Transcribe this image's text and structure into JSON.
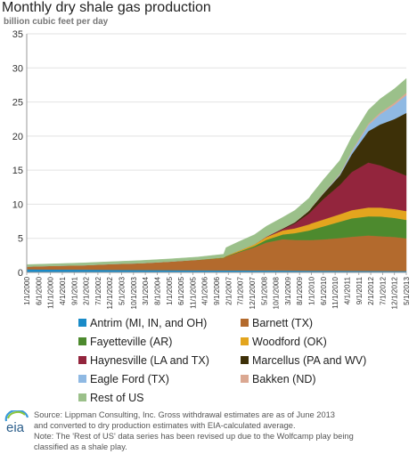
{
  "title": "Monthly dry shale gas production",
  "subtitle": "billion cubic feet per day",
  "logo_text": "eia",
  "source_lines": [
    "Source: Lippman Consulting, Inc. Gross withdrawal estimates are as of June 2013",
    "and converted to dry production estimates with EIA-calculated average.",
    "Note: The 'Rest of US' data series has been revised up due to the Wolfcamp play being",
    "classified as a shale play."
  ],
  "chart_data": {
    "type": "area",
    "stacked": true,
    "ylim": [
      0,
      35
    ],
    "yticks": [
      0,
      5,
      10,
      15,
      20,
      25,
      30,
      35
    ],
    "grid": true,
    "legend_position": "bottom",
    "x_tick_labels": [
      "1/1/2000",
      "6/1/2000",
      "11/1/2000",
      "4/1/2001",
      "9/1/2001",
      "2/1/2002",
      "7/1/2002",
      "12/1/2002",
      "5/1/2003",
      "10/1/2003",
      "3/1/2004",
      "8/1/2004",
      "1/1/2005",
      "6/1/2005",
      "11/1/2005",
      "4/1/2006",
      "9/1/2006",
      "2/1/2007",
      "7/1/2007",
      "12/1/2007",
      "5/1/2008",
      "10/1/2008",
      "3/1/2009",
      "8/1/2009",
      "1/1/2010",
      "6/1/2010",
      "11/1/2010",
      "4/1/2011",
      "9/1/2011",
      "2/1/2012",
      "7/1/2012",
      "12/1/2012",
      "5/1/2013"
    ],
    "x": [
      "2000-01",
      "2001-01",
      "2002-01",
      "2003-01",
      "2004-01",
      "2005-01",
      "2006-01",
      "2006-12",
      "2007-01",
      "2007-06",
      "2008-01",
      "2008-06",
      "2009-01",
      "2009-06",
      "2009-12",
      "2010-01",
      "2010-06",
      "2011-01",
      "2011-06",
      "2012-01",
      "2012-06",
      "2012-12",
      "2013-05"
    ],
    "series": [
      {
        "name": "Antrim (MI, IN, and OH)",
        "color": "#1a8bc8",
        "values": [
          0.45,
          0.42,
          0.4,
          0.38,
          0.35,
          0.33,
          0.31,
          0.3,
          0.3,
          0.29,
          0.28,
          0.28,
          0.27,
          0.26,
          0.25,
          0.25,
          0.25,
          0.24,
          0.23,
          0.22,
          0.21,
          0.2,
          0.2
        ]
      },
      {
        "name": "Barnett (TX)",
        "color": "#b36a2d",
        "values": [
          0.4,
          0.55,
          0.65,
          0.85,
          1.0,
          1.25,
          1.5,
          1.8,
          2.0,
          2.6,
          3.4,
          4.1,
          4.6,
          4.5,
          4.5,
          4.5,
          4.6,
          4.8,
          5.0,
          5.2,
          5.1,
          5.0,
          4.8
        ]
      },
      {
        "name": "Fayetteville (AR)",
        "color": "#4d8a2e",
        "values": [
          0,
          0,
          0,
          0,
          0,
          0,
          0.02,
          0.05,
          0.06,
          0.1,
          0.2,
          0.4,
          0.7,
          1.0,
          1.4,
          1.5,
          1.9,
          2.4,
          2.7,
          2.8,
          2.9,
          2.8,
          2.7
        ]
      },
      {
        "name": "Woodford (OK)",
        "color": "#e3a51e",
        "values": [
          0,
          0,
          0,
          0,
          0,
          0,
          0.03,
          0.07,
          0.08,
          0.15,
          0.25,
          0.4,
          0.6,
          0.7,
          0.9,
          0.95,
          1.0,
          1.1,
          1.2,
          1.3,
          1.3,
          1.3,
          1.3
        ]
      },
      {
        "name": "Haynesville (LA and TX)",
        "color": "#93253d",
        "values": [
          0,
          0,
          0,
          0,
          0,
          0,
          0,
          0,
          0,
          0,
          0,
          0.05,
          0.2,
          0.7,
          1.6,
          1.8,
          3.0,
          4.3,
          5.6,
          6.6,
          6.2,
          5.6,
          5.2
        ]
      },
      {
        "name": "Marcellus (PA and WV)",
        "color": "#3d3008",
        "values": [
          0,
          0,
          0,
          0,
          0,
          0,
          0,
          0,
          0,
          0,
          0,
          0.02,
          0.1,
          0.2,
          0.4,
          0.5,
          0.8,
          1.4,
          2.6,
          4.6,
          6.0,
          7.6,
          9.2
        ]
      },
      {
        "name": "Eagle Ford (TX)",
        "color": "#8fb9e3",
        "values": [
          0,
          0,
          0,
          0,
          0,
          0,
          0,
          0,
          0,
          0,
          0,
          0,
          0,
          0,
          0,
          0.01,
          0.05,
          0.15,
          0.4,
          0.9,
          1.5,
          2.1,
          2.6
        ]
      },
      {
        "name": "Bakken (ND)",
        "color": "#dba892",
        "values": [
          0,
          0,
          0,
          0,
          0,
          0,
          0,
          0,
          0,
          0.01,
          0.01,
          0.02,
          0.03,
          0.04,
          0.05,
          0.05,
          0.08,
          0.1,
          0.15,
          0.2,
          0.25,
          0.3,
          0.35
        ]
      },
      {
        "name": "Rest of US",
        "color": "#9bc08a",
        "values": [
          0.3,
          0.3,
          0.35,
          0.35,
          0.4,
          0.4,
          0.4,
          0.45,
          1.2,
          1.3,
          1.4,
          1.5,
          1.6,
          1.7,
          1.8,
          1.85,
          1.9,
          1.95,
          2.0,
          2.0,
          2.0,
          2.05,
          2.1
        ]
      }
    ]
  }
}
